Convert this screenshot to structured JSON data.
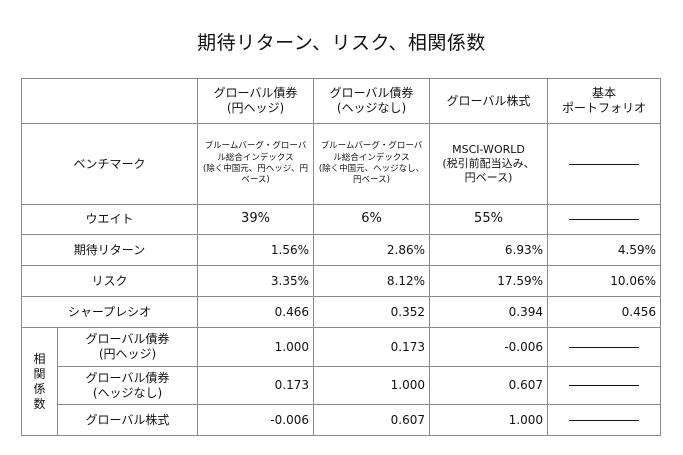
{
  "title": "期待リターン、リスク、相関係数",
  "headers": [
    "グローバル債券\n(円ヘッジ)",
    "グローバル債券\n(ヘッジなし)",
    "グローバル株式",
    "基本\nポートフォリオ"
  ],
  "benchmark": {
    "label": "ベンチマーク",
    "values": [
      "ブルームバーグ・グローバル総合インデックス\n(除く中国元、円ヘッジ、円ベース)",
      "ブルームバーグ・グローバル総合インデックス\n(除く中国元、ヘッジなし、円ベース)",
      "MSCI-WORLD\n(税引前配当込み、\n円ベース)",
      "―――――"
    ]
  },
  "weight": {
    "label": "ウエイト",
    "values": [
      "39%",
      "6%",
      "55%",
      "―――――"
    ]
  },
  "expected_return": {
    "label": "期待リターン",
    "values": [
      "1.56%",
      "2.86%",
      "6.93%",
      "4.59%"
    ]
  },
  "risk": {
    "label": "リスク",
    "values": [
      "3.35%",
      "8.12%",
      "17.59%",
      "10.06%"
    ]
  },
  "sharpe": {
    "label": "シャープレシオ",
    "values": [
      "0.466",
      "0.352",
      "0.394",
      "0.456"
    ]
  },
  "correlation": {
    "label_chars": [
      "相",
      "関",
      "係",
      "数"
    ],
    "rows": [
      {
        "label": "グローバル債券\n(円ヘッジ)",
        "values": [
          "1.000",
          "0.173",
          "-0.006",
          "―――――"
        ]
      },
      {
        "label": "グローバル債券\n(ヘッジなし)",
        "values": [
          "0.173",
          "1.000",
          "0.607",
          "―――――"
        ]
      },
      {
        "label": "グローバル株式",
        "values": [
          "-0.006",
          "0.607",
          "1.000",
          "―――――"
        ]
      }
    ]
  }
}
